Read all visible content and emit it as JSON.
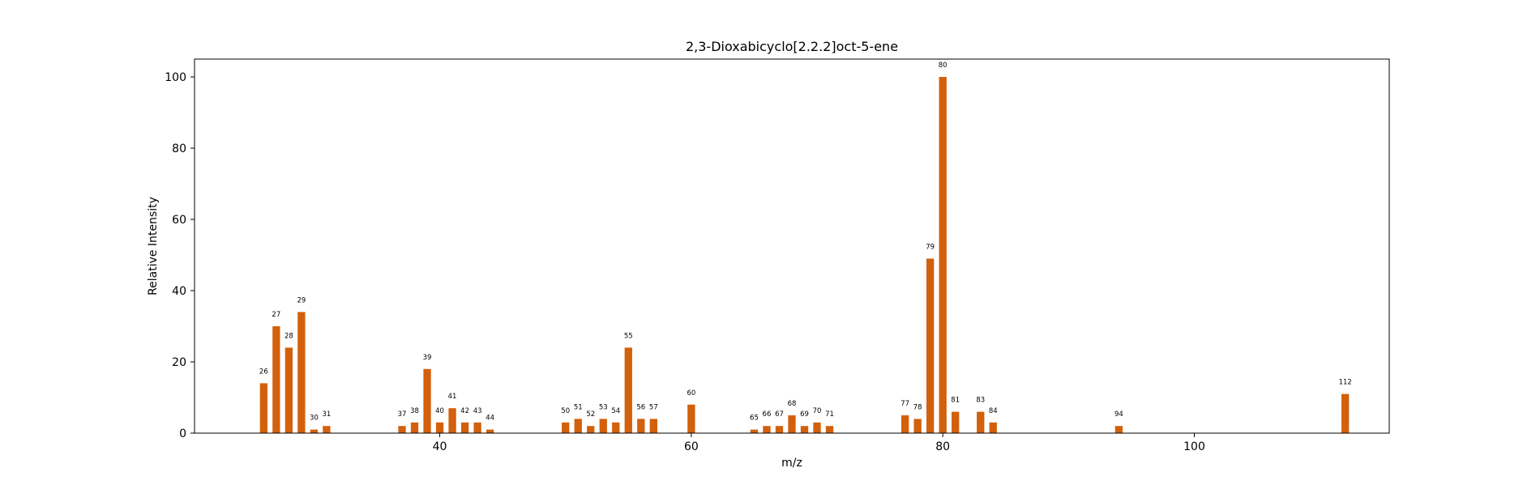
{
  "chart_data": {
    "type": "bar",
    "title": "2,3-Dioxabicyclo[2.2.2]oct-5-ene",
    "xlabel": "m/z",
    "ylabel": "Relative Intensity",
    "xlim": [
      20.5,
      115.5
    ],
    "ylim": [
      0,
      105
    ],
    "xticks": [
      40,
      60,
      80,
      100
    ],
    "yticks": [
      0,
      20,
      40,
      60,
      80,
      100
    ],
    "grid": false,
    "bar_color": "#d2600c",
    "x": [
      26,
      27,
      28,
      29,
      30,
      31,
      37,
      38,
      39,
      40,
      41,
      42,
      43,
      44,
      50,
      51,
      52,
      53,
      54,
      55,
      56,
      57,
      60,
      65,
      66,
      67,
      68,
      69,
      70,
      71,
      77,
      78,
      79,
      80,
      81,
      83,
      84,
      94,
      112
    ],
    "values": [
      14,
      30,
      24,
      34,
      1,
      2,
      2,
      3,
      18,
      3,
      7,
      3,
      3,
      1,
      3,
      4,
      2,
      4,
      3,
      24,
      4,
      4,
      8,
      1,
      2,
      2,
      5,
      2,
      3,
      2,
      5,
      4,
      49,
      100,
      6,
      6,
      3,
      2,
      11
    ],
    "labels": [
      "26",
      "27",
      "28",
      "29",
      "30",
      "31",
      "37",
      "38",
      "39",
      "40",
      "41",
      "42",
      "43",
      "44",
      "50",
      "51",
      "52",
      "53",
      "54",
      "55",
      "56",
      "57",
      "60",
      "65",
      "66",
      "67",
      "68",
      "69",
      "70",
      "71",
      "77",
      "78",
      "79",
      "80",
      "81",
      "83",
      "84",
      "94",
      "112"
    ]
  }
}
